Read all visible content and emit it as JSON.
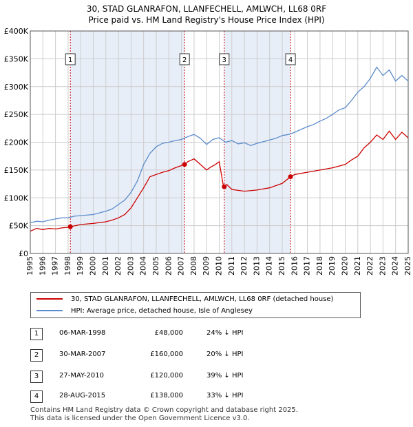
{
  "title_line1": "30, STAD GLANRAFON, LLANFECHELL, AMLWCH, LL68 0RF",
  "title_line2": "Price paid vs. HM Land Registry's House Price Index (HPI)",
  "legend": {
    "property": "30, STAD GLANRAFON, LLANFECHELL, AMLWCH, LL68 0RF (detached house)",
    "hpi": "HPI: Average price, detached house, Isle of Anglesey"
  },
  "colors": {
    "property": "#cc0000",
    "hpi": "#5b8ccc",
    "shade": "#e8eef8",
    "grid": "#cccccc"
  },
  "sales": [
    {
      "num": "1",
      "date": "06-MAR-1998",
      "price": "£48,000",
      "hpi": "24% ↓ HPI"
    },
    {
      "num": "2",
      "date": "30-MAR-2007",
      "price": "£160,000",
      "hpi": "20% ↓ HPI"
    },
    {
      "num": "3",
      "date": "27-MAY-2010",
      "price": "£120,000",
      "hpi": "39% ↓ HPI"
    },
    {
      "num": "4",
      "date": "28-AUG-2015",
      "price": "£138,000",
      "hpi": "33% ↓ HPI"
    }
  ],
  "footer_line1": "Contains HM Land Registry data © Crown copyright and database right 2025.",
  "footer_line2": "This data is licensed under the Open Government Licence v3.0.",
  "chart_data": {
    "type": "line",
    "title": "30, STAD GLANRAFON, LLANFECHELL, AMLWCH, LL68 0RF — Price paid vs. HM Land Registry's House Price Index (HPI)",
    "xlabel": "",
    "ylabel": "",
    "xlim": [
      1995,
      2025
    ],
    "ylim": [
      0,
      400000
    ],
    "y_ticks": [
      0,
      50000,
      100000,
      150000,
      200000,
      250000,
      300000,
      350000,
      400000
    ],
    "y_tick_labels": [
      "£0",
      "£50K",
      "£100K",
      "£150K",
      "£200K",
      "£250K",
      "£300K",
      "£350K",
      "£400K"
    ],
    "x_ticks": [
      1995,
      1996,
      1997,
      1998,
      1999,
      2000,
      2001,
      2002,
      2003,
      2004,
      2005,
      2006,
      2007,
      2008,
      2009,
      2010,
      2011,
      2012,
      2013,
      2014,
      2015,
      2016,
      2017,
      2018,
      2019,
      2020,
      2021,
      2022,
      2023,
      2024,
      2025
    ],
    "x_tick_labels": [
      "1995",
      "1996",
      "1997",
      "1998",
      "1999",
      "2000",
      "2001",
      "2002",
      "2003",
      "2004",
      "2005",
      "2006",
      "2007",
      "2008",
      "2009",
      "2010",
      "2011",
      "2012",
      "2013",
      "2014",
      "2015",
      "2016",
      "2017",
      "2018",
      "2019",
      "2020",
      "2021",
      "2022",
      "2023",
      "2024",
      "2025"
    ],
    "grid": true,
    "shaded_ranges": [
      [
        1998.18,
        2007.25
      ],
      [
        2010.4,
        2015.66
      ]
    ],
    "series": [
      {
        "name": "30, STAD GLANRAFON, LLANFECHELL, AMLWCH, LL68 0RF (detached house)",
        "x": [
          1995,
          1995.5,
          1996,
          1996.5,
          1997,
          1997.5,
          1998,
          1998.18,
          1999,
          2000,
          2001,
          2001.5,
          2002,
          2002.5,
          2003,
          2003.5,
          2004,
          2004.5,
          2005,
          2005.5,
          2006,
          2006.5,
          2007,
          2007.25,
          2007.5,
          2008,
          2008.5,
          2009,
          2009.3,
          2009.7,
          2010,
          2010.3,
          2010.4,
          2010.6,
          2011,
          2012,
          2013,
          2014,
          2015,
          2015.66,
          2016,
          2017,
          2018,
          2019,
          2020,
          2020.5,
          2021,
          2021.5,
          2022,
          2022.5,
          2023,
          2023.5,
          2024,
          2024.5,
          2025
        ],
        "y": [
          40000,
          45000,
          43000,
          45000,
          44000,
          46000,
          47000,
          48000,
          52000,
          54000,
          57000,
          60000,
          64000,
          70000,
          82000,
          100000,
          118000,
          138000,
          142000,
          146000,
          149000,
          154000,
          158000,
          160000,
          165000,
          170000,
          160000,
          150000,
          155000,
          160000,
          165000,
          125000,
          120000,
          124000,
          115000,
          112000,
          114000,
          118000,
          126000,
          138000,
          142000,
          146000,
          150000,
          154000,
          160000,
          168000,
          175000,
          190000,
          200000,
          213000,
          205000,
          220000,
          205000,
          218000,
          208000
        ]
      },
      {
        "name": "HPI: Average price, detached house, Isle of Anglesey",
        "x": [
          1995,
          1995.5,
          1996,
          1996.5,
          1997,
          1997.5,
          1998,
          1998.5,
          1999,
          2000,
          2001,
          2001.5,
          2002,
          2002.5,
          2003,
          2003.5,
          2004,
          2004.5,
          2005,
          2005.5,
          2006,
          2006.5,
          2007,
          2007.5,
          2008,
          2008.5,
          2009,
          2009.5,
          2010,
          2010.5,
          2011,
          2011.5,
          2012,
          2012.5,
          2013,
          2013.5,
          2014,
          2014.5,
          2015,
          2015.5,
          2016,
          2016.5,
          2017,
          2017.5,
          2018,
          2018.5,
          2019,
          2019.5,
          2020,
          2020.5,
          2021,
          2021.5,
          2022,
          2022.5,
          2023,
          2023.5,
          2024,
          2024.5,
          2025
        ],
        "y": [
          55000,
          58000,
          57000,
          60000,
          62000,
          64000,
          64000,
          67000,
          68000,
          70000,
          76000,
          80000,
          88000,
          96000,
          110000,
          130000,
          160000,
          180000,
          192000,
          198000,
          200000,
          203000,
          205000,
          210000,
          214000,
          207000,
          196000,
          205000,
          208000,
          200000,
          203000,
          197000,
          199000,
          194000,
          198000,
          201000,
          204000,
          207000,
          212000,
          214000,
          218000,
          223000,
          228000,
          232000,
          238000,
          243000,
          250000,
          258000,
          262000,
          275000,
          290000,
          300000,
          315000,
          335000,
          320000,
          330000,
          310000,
          320000,
          310000
        ]
      }
    ],
    "sale_points": [
      {
        "label": "1",
        "x": 1998.18,
        "y": 48000
      },
      {
        "label": "2",
        "x": 2007.25,
        "y": 160000
      },
      {
        "label": "3",
        "x": 2010.4,
        "y": 120000
      },
      {
        "label": "4",
        "x": 2015.66,
        "y": 138000
      }
    ]
  }
}
